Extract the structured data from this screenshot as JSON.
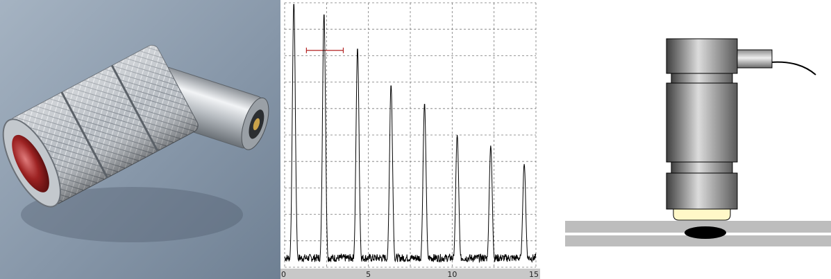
{
  "scope": {
    "x_axis": {
      "ticks": [
        "0",
        "5",
        "10",
        "15"
      ],
      "min": 0,
      "max": 15
    },
    "y_axis": {
      "min": 0,
      "max": 100
    },
    "grid": true,
    "trace_color": "#000000",
    "gate": {
      "x_start": 1.3,
      "x_end": 3.5,
      "level": 82,
      "color": "#b22222"
    },
    "echo_peaks": [
      {
        "x": 0.55,
        "amplitude": 100
      },
      {
        "x": 2.35,
        "amplitude": 96
      },
      {
        "x": 4.35,
        "amplitude": 83
      },
      {
        "x": 6.35,
        "amplitude": 69
      },
      {
        "x": 8.35,
        "amplitude": 62
      },
      {
        "x": 10.3,
        "amplitude": 50
      },
      {
        "x": 12.3,
        "amplitude": 46
      },
      {
        "x": 14.3,
        "amplitude": 39
      }
    ]
  },
  "colors": {
    "photo_background": "#8fa0b2",
    "probe_metal": "#c8ccd0",
    "probe_lens": "#8a1a1a",
    "diagram_probe": "#6e6e6e",
    "diagram_crystal": "#fff8c8",
    "diagram_plate": "#bdbdbd",
    "diagram_flaw": "#000000"
  }
}
